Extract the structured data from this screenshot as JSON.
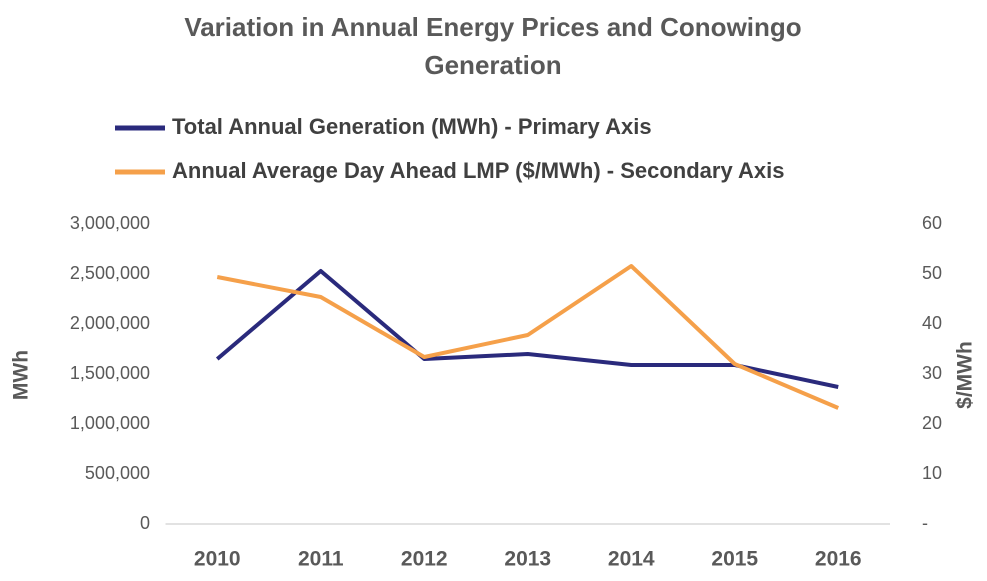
{
  "chart_data": {
    "type": "line",
    "title": "Variation in Annual Energy Prices and Conowingo Generation",
    "categories": [
      "2010",
      "2011",
      "2012",
      "2013",
      "2014",
      "2015",
      "2016"
    ],
    "series": [
      {
        "name": "Total Annual Generation (MWh) - Primary Axis",
        "color": "#2a2a7c",
        "values": [
          1650000,
          2530000,
          1650000,
          1700000,
          1590000,
          1590000,
          1370000
        ]
      },
      {
        "name": "Annual Average Day Ahead LMP ($/MWh) - Secondary Axis",
        "color": "#f5a04a",
        "axis": "y2",
        "values": [
          49.4,
          45.4,
          33.4,
          37.8,
          51.6,
          32,
          23.2
        ]
      }
    ],
    "y_label": "MWh",
    "y2_label": "$/MWh",
    "ylim": [
      0,
      3000000
    ],
    "yticks": [
      0,
      {
        "value": 500000,
        "label": "500,000"
      },
      {
        "value": 1000000,
        "label": "1,000,000"
      },
      {
        "value": 1500000,
        "label": "1,500,000"
      },
      {
        "value": 2000000,
        "label": "2,000,000"
      },
      {
        "value": 2500000,
        "label": "2,500,000"
      },
      {
        "value": 3000000,
        "label": "3,000,000"
      }
    ],
    "y2lim": [
      0,
      60
    ],
    "y2ticks": [
      {
        "value": 0,
        "label": "-"
      },
      10,
      20,
      30,
      40,
      50,
      60
    ],
    "grid": false
  }
}
